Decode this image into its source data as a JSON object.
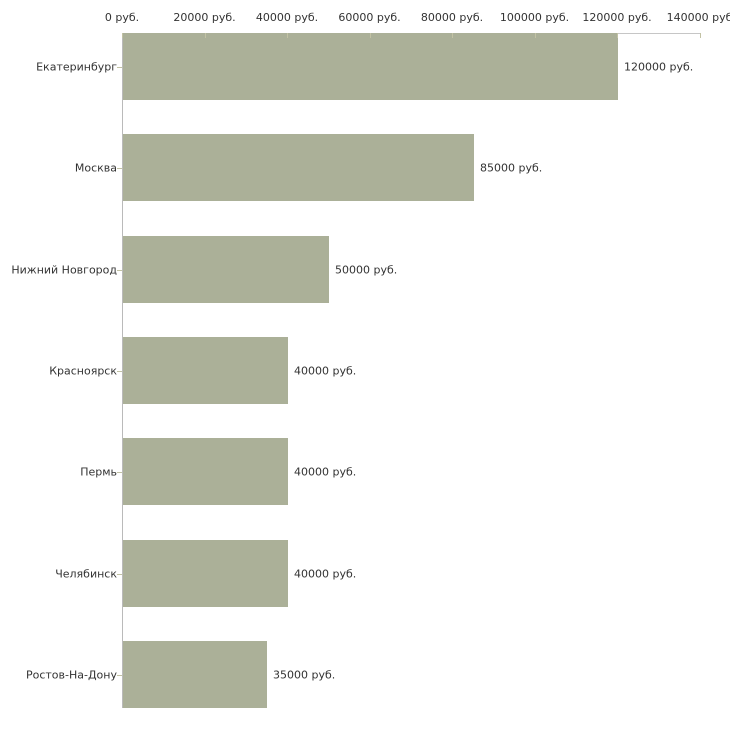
{
  "chart_data": {
    "type": "bar",
    "orientation": "horizontal",
    "title": "",
    "legend": false,
    "grid": false,
    "categories": [
      "Екатеринбург",
      "Москва",
      "Нижний Новгород",
      "Красноярск",
      "Пермь",
      "Челябинск",
      "Ростов-На-Дону"
    ],
    "values": [
      120000,
      85000,
      50000,
      40000,
      40000,
      40000,
      35000
    ],
    "value_labels": [
      "120000 руб.",
      "85000 руб.",
      "50000 руб.",
      "40000 руб.",
      "40000 руб.",
      "40000 руб.",
      "35000 руб."
    ],
    "x_axis": {
      "position": "top",
      "unit": "руб.",
      "min": 0,
      "max": 140000,
      "ticks": [
        0,
        20000,
        40000,
        60000,
        80000,
        100000,
        120000,
        140000
      ],
      "tick_labels": [
        "0 руб.",
        "20000 руб.",
        "40000 руб.",
        "60000 руб.",
        "80000 руб.",
        "100000 руб.",
        "120000 руб.",
        "140000 руб"
      ]
    },
    "colors": {
      "bar": "#abb098",
      "x_axis_line": "#c6c6c6",
      "y_axis_line": "#bababa",
      "tick": "#c2c2a4",
      "text": "#333333",
      "background": "#ffffff"
    }
  }
}
